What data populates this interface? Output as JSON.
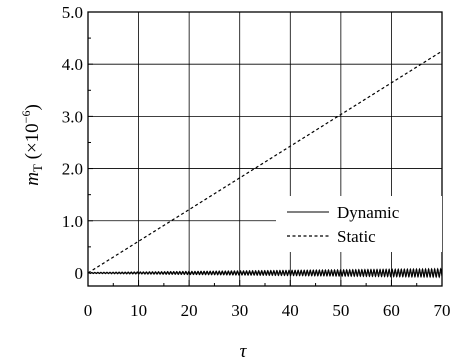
{
  "chart_data": {
    "type": "line",
    "title": "",
    "xlabel": "τ",
    "ylabel": {
      "symbol": "m",
      "subscript": "T",
      "unit_prefix": " (×10",
      "exponent": "−6",
      "unit_suffix": ")"
    },
    "xlim": [
      0,
      70
    ],
    "ylim": [
      -0.25,
      5.0
    ],
    "x_ticks": [
      "0",
      "10",
      "20",
      "30",
      "40",
      "50",
      "60",
      "70"
    ],
    "y_ticks": [
      "0",
      "1.0",
      "2.0",
      "3.0",
      "4.0",
      "5.0"
    ],
    "grid": true,
    "legend_position": "lower-right",
    "series": [
      {
        "name": "Dynamic",
        "style": "solid",
        "color": "#000000",
        "description_values": {
          "center": 0.0,
          "oscillation_amplitude_start": 0.01,
          "oscillation_amplitude_end": 0.08,
          "oscillation_period": 0.6
        }
      },
      {
        "name": "Static",
        "style": "dashed",
        "color": "#000000",
        "x": [
          0,
          70
        ],
        "y": [
          0.0,
          4.25
        ]
      }
    ]
  }
}
